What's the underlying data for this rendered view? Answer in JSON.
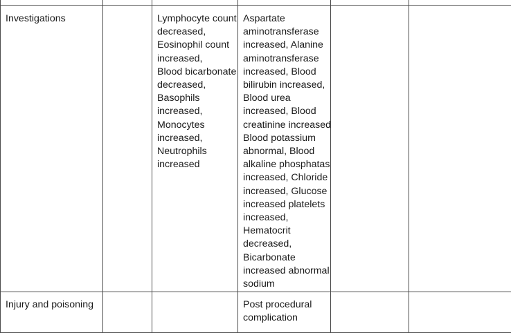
{
  "rows": [
    {
      "category": "Investigations",
      "col2": "",
      "col3_lines": [
        "Lymphocyte count",
        "decreased,",
        "Eosinophil count",
        "increased,",
        "Blood bicarbonate",
        "decreased,",
        "Basophils",
        "increased,",
        "Monocytes",
        "increased,",
        "Neutrophils",
        "increased"
      ],
      "col4_lines": [
        "Aspartate",
        "aminotransferase",
        "increased, Alanine",
        "aminotransferase",
        "increased, Blood",
        "bilirubin increased,",
        "Blood urea",
        "increased, Blood",
        "creatinine increased,",
        "Blood potassium",
        "abnormal, Blood",
        "alkaline phosphatase",
        "increased, Chloride",
        "increased, Glucose",
        "increased platelets",
        "increased,",
        "Hematocrit",
        "decreased,",
        "Bicarbonate",
        "increased abnormal",
        "sodium"
      ],
      "col5": "",
      "col6": ""
    },
    {
      "category": "Injury and poisoning",
      "col2": "",
      "col3_lines": [],
      "col4_lines": [
        "Post procedural",
        "complication"
      ],
      "col5": "",
      "col6": ""
    }
  ]
}
